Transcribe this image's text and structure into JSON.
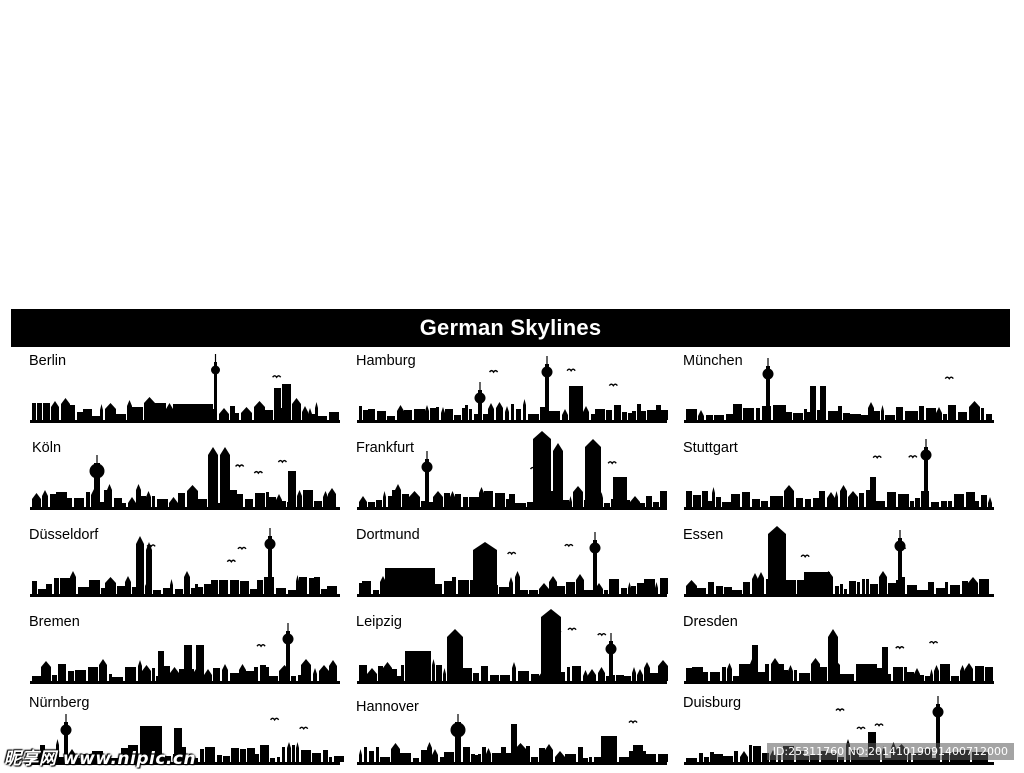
{
  "banner": {
    "title": "German Skylines"
  },
  "cities": [
    "Berlin",
    "Hamburg",
    "München",
    "Köln",
    "Frankfurt",
    "Stuttgart",
    "Düsseldorf",
    "Dortmund",
    "Essen",
    "Bremen",
    "Leipzig",
    "Dresden",
    "Nürnberg",
    "Hannover",
    "Duisburg"
  ],
  "watermark": {
    "logo_text": "昵享网 www.nipic.cn",
    "id_text": "ID:25311760 NO:20141019091400712000"
  },
  "colors": {
    "silhouette": "#000000",
    "banner_bg": "#000000",
    "banner_text": "#ffffff"
  }
}
